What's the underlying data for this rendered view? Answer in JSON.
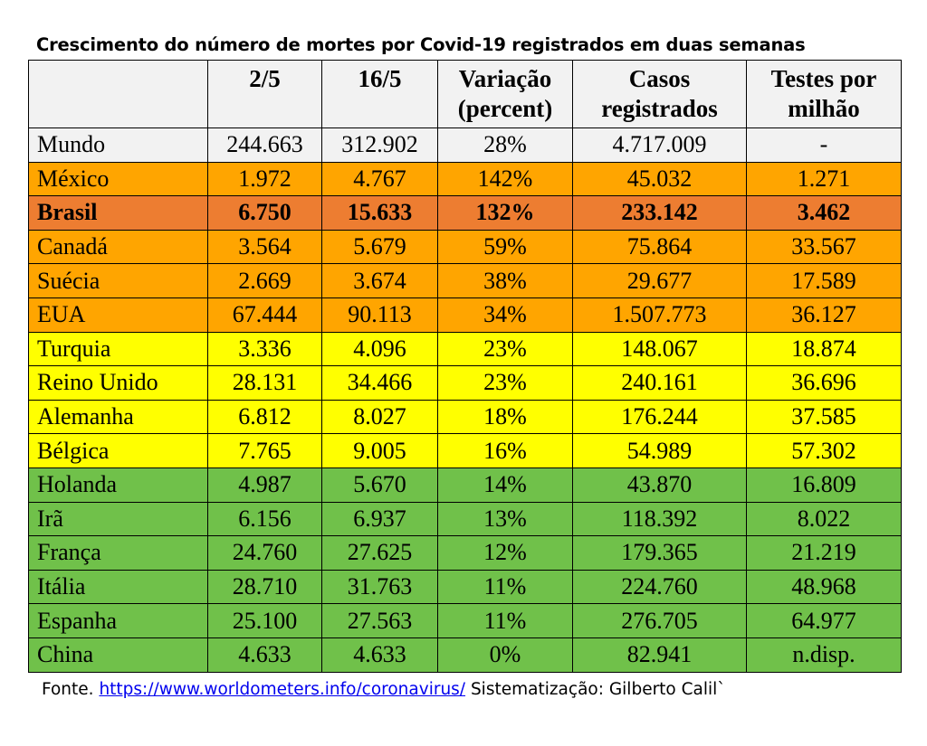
{
  "title": "Crescimento do número de mortes por Covid-19 registrados em duas semanas",
  "columns": [
    {
      "line1": "",
      "line2": ""
    },
    {
      "line1": "2/5",
      "line2": ""
    },
    {
      "line1": "16/5",
      "line2": ""
    },
    {
      "line1": "Variação",
      "line2": "(percent)"
    },
    {
      "line1": "Casos",
      "line2": "registrados"
    },
    {
      "line1": "Testes por",
      "line2": "milhão"
    }
  ],
  "colors": {
    "gray": "#f2f2f2",
    "orange": "#ffa500",
    "dark_orange": "#ed7d31",
    "yellow": "#ffff00",
    "green": "#70c14a"
  },
  "rows": [
    {
      "country": "Mundo",
      "d1": "244.663",
      "d2": "312.902",
      "var": "28%",
      "cases": "4.717.009",
      "tests": "-",
      "color": "gray"
    },
    {
      "country": "México",
      "d1": "1.972",
      "d2": "4.767",
      "var": "142%",
      "cases": "45.032",
      "tests": "1.271",
      "color": "orange"
    },
    {
      "country": "Brasil",
      "d1": "6.750",
      "d2": "15.633",
      "var": "132%",
      "cases": "233.142",
      "tests": "3.462",
      "color": "dark_orange",
      "bold": true
    },
    {
      "country": "Canadá",
      "d1": "3.564",
      "d2": "5.679",
      "var": "59%",
      "cases": "75.864",
      "tests": "33.567",
      "color": "orange"
    },
    {
      "country": "Suécia",
      "d1": "2.669",
      "d2": "3.674",
      "var": "38%",
      "cases": "29.677",
      "tests": "17.589",
      "color": "orange"
    },
    {
      "country": "EUA",
      "d1": "67.444",
      "d2": "90.113",
      "var": "34%",
      "cases": "1.507.773",
      "tests": "36.127",
      "color": "orange"
    },
    {
      "country": "Turquia",
      "d1": "3.336",
      "d2": "4.096",
      "var": "23%",
      "cases": "148.067",
      "tests": "18.874",
      "color": "yellow"
    },
    {
      "country": "Reino Unido",
      "d1": "28.131",
      "d2": "34.466",
      "var": "23%",
      "cases": "240.161",
      "tests": "36.696",
      "color": "yellow"
    },
    {
      "country": "Alemanha",
      "d1": "6.812",
      "d2": "8.027",
      "var": "18%",
      "cases": "176.244",
      "tests": "37.585",
      "color": "yellow"
    },
    {
      "country": "Bélgica",
      "d1": "7.765",
      "d2": "9.005",
      "var": "16%",
      "cases": "54.989",
      "tests": "57.302",
      "color": "yellow"
    },
    {
      "country": "Holanda",
      "d1": "4.987",
      "d2": "5.670",
      "var": "14%",
      "cases": "43.870",
      "tests": "16.809",
      "color": "green"
    },
    {
      "country": "Irã",
      "d1": "6.156",
      "d2": "6.937",
      "var": "13%",
      "cases": "118.392",
      "tests": "8.022",
      "color": "green"
    },
    {
      "country": "França",
      "d1": "24.760",
      "d2": "27.625",
      "var": "12%",
      "cases": "179.365",
      "tests": "21.219",
      "color": "green"
    },
    {
      "country": "Itália",
      "d1": "28.710",
      "d2": "31.763",
      "var": "11%",
      "cases": "224.760",
      "tests": "48.968",
      "color": "green"
    },
    {
      "country": "Espanha",
      "d1": "25.100",
      "d2": "27.563",
      "var": "11%",
      "cases": "276.705",
      "tests": "64.977",
      "color": "green"
    },
    {
      "country": "China",
      "d1": "4.633",
      "d2": "4.633",
      "var": "0%",
      "cases": "82.941",
      "tests": "n.disp.",
      "color": "green"
    }
  ],
  "source": {
    "prefix": "Fonte.",
    "link": "https://www.worldometers.info/coronavirus/",
    "suffix": "Sistematização: Gilberto Calil`"
  }
}
